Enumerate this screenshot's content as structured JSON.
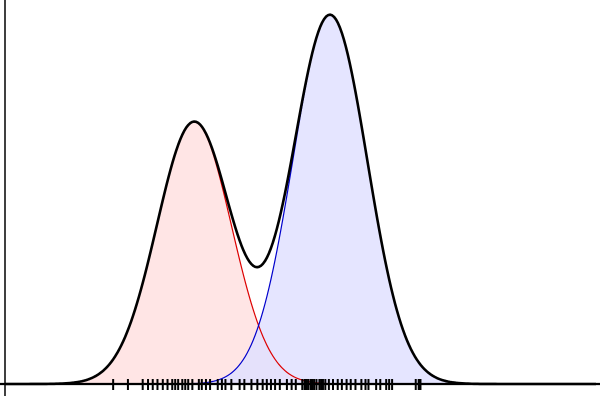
{
  "chart_data": {
    "type": "area",
    "title": "",
    "xlabel": "",
    "ylabel": "",
    "xlim": [
      0,
      10
    ],
    "ylim": [
      0,
      1.0
    ],
    "grid": false,
    "legend": "none",
    "x_ticks": [],
    "y_ticks": [],
    "mixture_total": {
      "color": "#000000"
    },
    "components": [
      {
        "mean": 3.2,
        "sd": 0.63,
        "peak": 0.71,
        "line_color": "#dd0000",
        "fill_color": "#ffe0e0"
      },
      {
        "mean": 5.5,
        "sd": 0.63,
        "peak": 1.0,
        "line_color": "#0000cc",
        "fill_color": "#e0e0ff"
      }
    ],
    "rug": [
      1.83,
      2.08,
      2.33,
      2.42,
      2.5,
      2.58,
      2.67,
      2.75,
      2.83,
      2.88,
      2.93,
      3.0,
      3.05,
      3.1,
      3.17,
      3.28,
      3.33,
      3.4,
      3.47,
      3.6,
      3.67,
      3.73,
      3.83,
      3.97,
      4.05,
      4.17,
      4.27,
      4.36,
      4.43,
      4.5,
      4.57,
      4.65,
      4.77,
      4.85,
      4.92,
      5.03,
      5.07,
      5.1,
      5.13,
      5.17,
      5.2,
      5.23,
      5.27,
      5.32,
      5.35,
      5.38,
      5.42,
      5.48,
      5.55,
      5.63,
      5.7,
      5.78,
      5.85,
      5.93,
      6.03,
      6.1,
      6.15,
      6.28,
      6.35,
      6.45,
      6.5,
      6.55,
      6.95,
      7.0,
      7.03
    ]
  }
}
